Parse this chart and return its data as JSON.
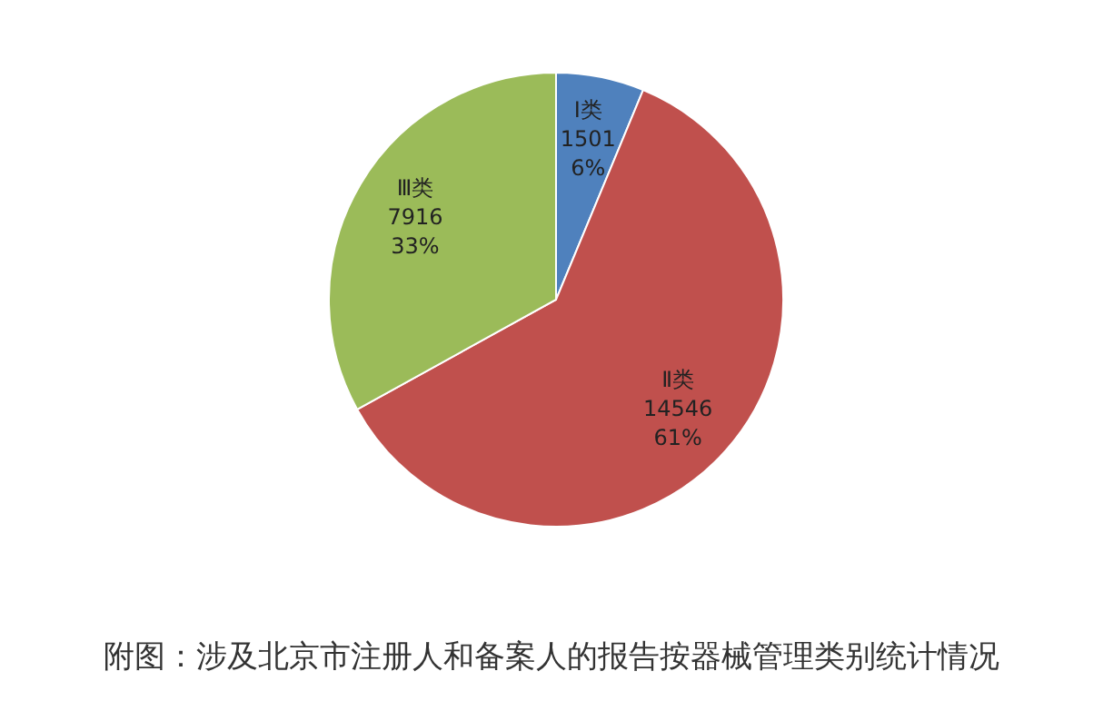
{
  "chart_data": {
    "type": "pie",
    "title": "附图：涉及北京市注册人和备案人的报告按器械管理类别统计情况",
    "categories": [
      "Ⅰ类",
      "Ⅱ类",
      "Ⅲ类"
    ],
    "values": [
      1501,
      14546,
      7916
    ],
    "colors": [
      "#4f81bd",
      "#c0504d",
      "#9bbb59"
    ],
    "value_labels": [
      "1501\n6%",
      "14546\n61%",
      "7916\n33%"
    ]
  }
}
